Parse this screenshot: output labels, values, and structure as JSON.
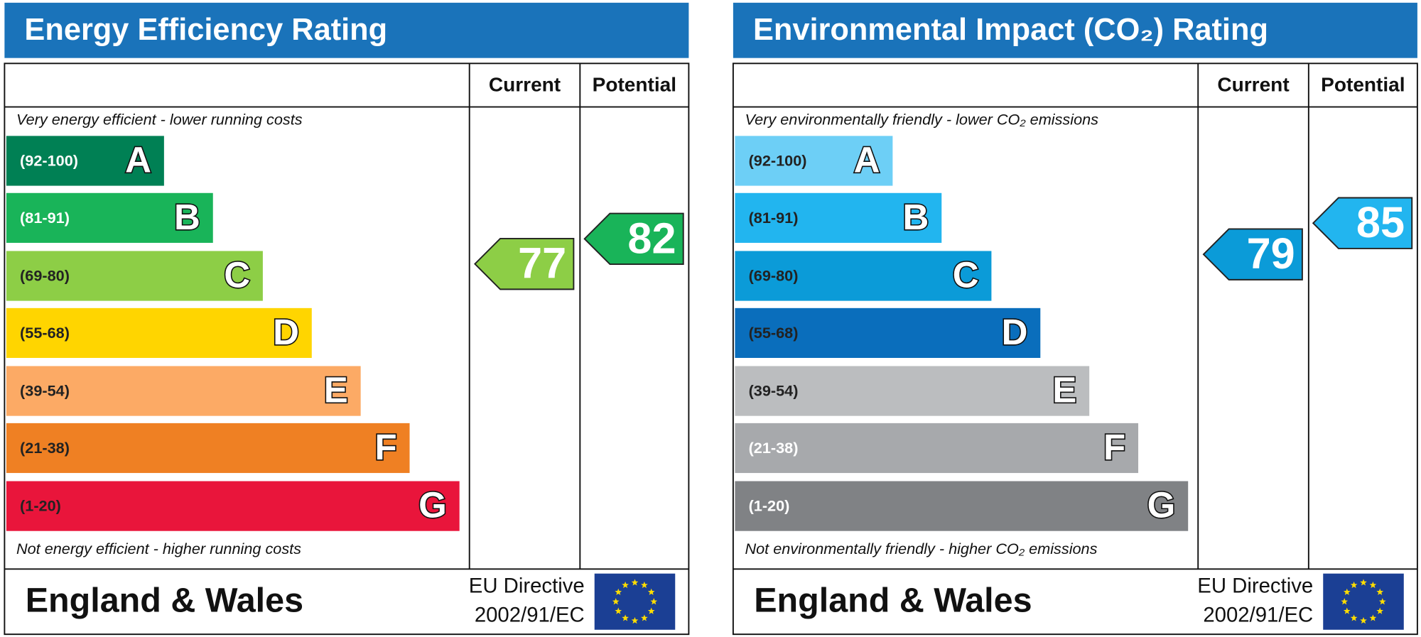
{
  "panels": [
    {
      "title": "Energy Efficiency Rating",
      "columns": [
        "Current",
        "Potential"
      ],
      "top_note": "Very energy efficient - lower running costs",
      "bottom_note": "Not energy efficient - higher running costs",
      "bands": [
        {
          "range": "(92-100)",
          "letter": "A",
          "color": "#008054"
        },
        {
          "range": "(81-91)",
          "letter": "B",
          "color": "#19b459"
        },
        {
          "range": "(69-80)",
          "letter": "C",
          "color": "#8dce46"
        },
        {
          "range": "(55-68)",
          "letter": "D",
          "color": "#ffd500"
        },
        {
          "range": "(39-54)",
          "letter": "E",
          "color": "#fcaa65"
        },
        {
          "range": "(21-38)",
          "letter": "F",
          "color": "#ef8023"
        },
        {
          "range": "(1-20)",
          "letter": "G",
          "color": "#e9153b"
        }
      ],
      "current": 77,
      "potential": 82,
      "footer": {
        "region": "England & Wales",
        "directive": [
          "EU Directive",
          "2002/91/EC"
        ]
      }
    },
    {
      "title": "Environmental Impact (CO₂) Rating",
      "columns": [
        "Current",
        "Potential"
      ],
      "top_note": "Very environmentally friendly - lower CO₂ emissions",
      "bottom_note": "Not environmentally friendly - higher CO₂ emissions",
      "bands": [
        {
          "range": "(92-100)",
          "letter": "A",
          "color": "#6dcff6"
        },
        {
          "range": "(81-91)",
          "letter": "B",
          "color": "#22b5ef"
        },
        {
          "range": "(69-80)",
          "letter": "C",
          "color": "#0b9bd8"
        },
        {
          "range": "(55-68)",
          "letter": "D",
          "color": "#0a6ebc"
        },
        {
          "range": "(39-54)",
          "letter": "E",
          "color": "#bbbdbf"
        },
        {
          "range": "(21-38)",
          "letter": "F",
          "color": "#a7a9ac"
        },
        {
          "range": "(1-20)",
          "letter": "G",
          "color": "#808285"
        }
      ],
      "current": 79,
      "potential": 85,
      "footer": {
        "region": "England & Wales",
        "directive": [
          "EU Directive",
          "2002/91/EC"
        ]
      }
    }
  ]
}
